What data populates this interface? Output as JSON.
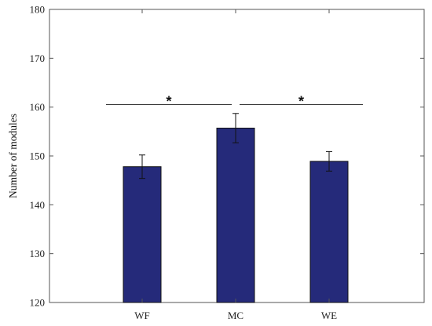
{
  "chart_data": {
    "type": "bar",
    "title": "",
    "xlabel": "",
    "ylabel": "Number of modules",
    "categories": [
      "WF",
      "MC",
      "WE"
    ],
    "values": [
      147.8,
      155.7,
      148.9
    ],
    "error": [
      2.4,
      3.0,
      2.0
    ],
    "ylim": [
      120,
      180
    ],
    "yticks": [
      120,
      130,
      140,
      150,
      160,
      170,
      180
    ],
    "bar_color": "#252a7a",
    "grid": false,
    "significance": [
      {
        "from": "WF",
        "to": "MC",
        "y": 160.5,
        "label": "*"
      },
      {
        "from": "MC",
        "to": "WE",
        "y": 160.5,
        "label": "*"
      }
    ]
  }
}
